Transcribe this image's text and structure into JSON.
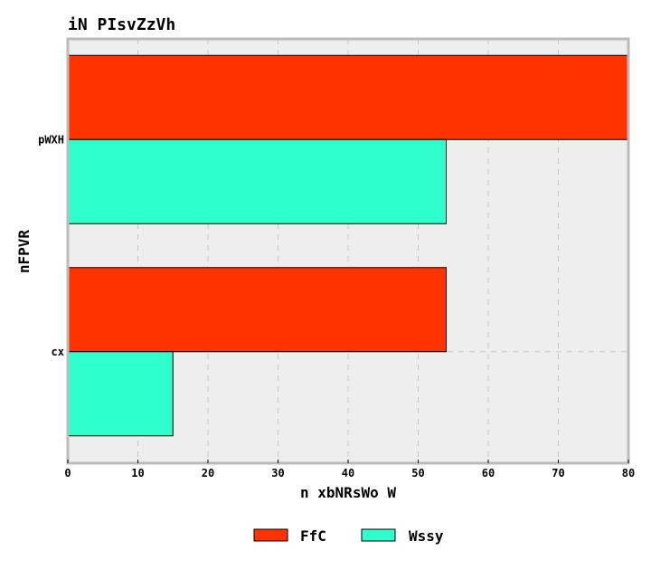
{
  "chart_data": {
    "type": "bar",
    "orientation": "horizontal",
    "title": "iN PIsvZzVh",
    "xlabel": "n xbNRsWo W",
    "ylabel": "nFPVR",
    "categories": [
      "pWXH",
      "cx"
    ],
    "series": [
      {
        "name": "FfC",
        "color": "#ff3300",
        "values": [
          80,
          54
        ]
      },
      {
        "name": "Wssy",
        "color": "#2effcc",
        "values": [
          54,
          15
        ]
      }
    ],
    "xlim": [
      0,
      80
    ],
    "xticks": [
      "0",
      "10",
      "20",
      "30",
      "40",
      "50",
      "60",
      "70",
      "80"
    ],
    "grid": true,
    "legend_position": "bottom",
    "plot_background": "#eeeeee",
    "frame_color": "#bbbbbb"
  }
}
